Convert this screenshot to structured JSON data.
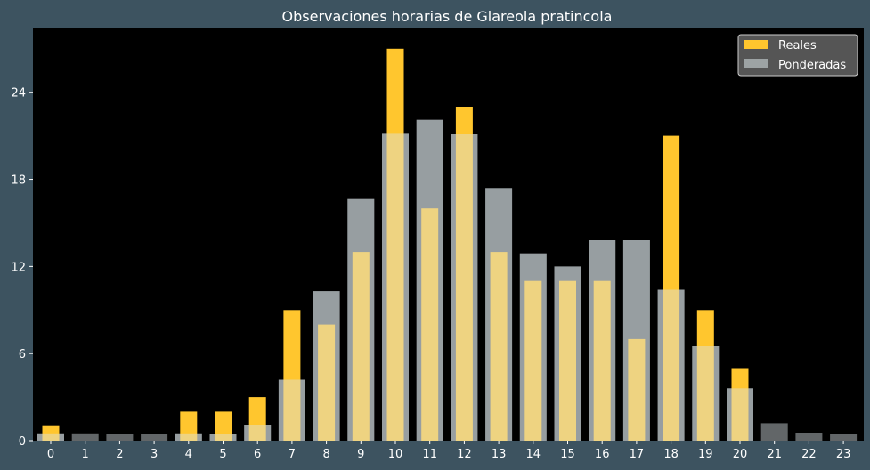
{
  "chart_data": {
    "type": "bar",
    "title": "Observaciones horarias de Glareola pratincola",
    "xlabel": "",
    "ylabel": "",
    "categories": [
      "0",
      "1",
      "2",
      "3",
      "4",
      "5",
      "6",
      "7",
      "8",
      "9",
      "10",
      "11",
      "12",
      "13",
      "14",
      "15",
      "16",
      "17",
      "18",
      "19",
      "20",
      "21",
      "22",
      "23"
    ],
    "ylim": [
      0,
      28.4
    ],
    "yticks": [
      0,
      6,
      12,
      18,
      24
    ],
    "series": [
      {
        "name": "Reales",
        "color": "#ffc62e",
        "values": [
          1,
          0,
          0,
          0,
          2,
          2,
          3,
          9,
          8,
          13,
          27,
          16,
          23,
          13,
          11,
          11,
          11,
          7,
          21,
          9,
          5,
          0,
          0,
          0
        ]
      },
      {
        "name": "Ponderadas",
        "color": "#d9e3e6",
        "values": [
          0.5,
          0.5,
          0.45,
          0.45,
          0.5,
          0.45,
          1.1,
          4.2,
          10.3,
          16.7,
          21.2,
          22.1,
          21.1,
          17.4,
          12.9,
          12.0,
          13.8,
          13.8,
          10.4,
          6.5,
          3.6,
          1.2,
          0.55,
          0.45
        ]
      }
    ],
    "legend": {
      "position": "top-right",
      "entries": [
        "Reales",
        "Ponderadas"
      ]
    },
    "grid": false,
    "colors": {
      "figure_background": "#3d5360",
      "plot_background": "#000000",
      "text": "#ffffff"
    }
  }
}
